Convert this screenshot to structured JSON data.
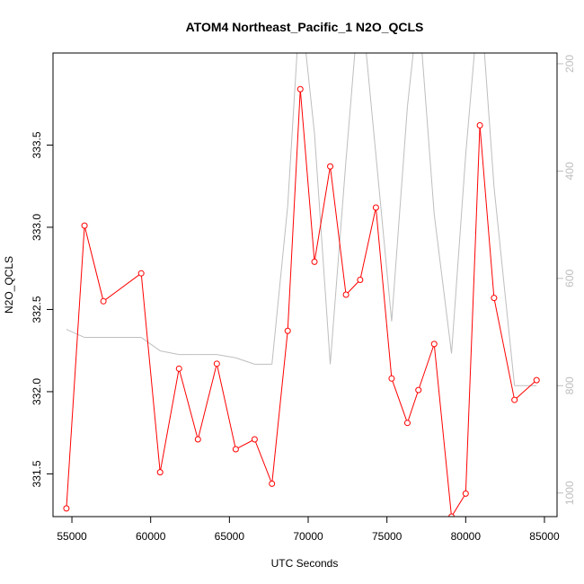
{
  "chart_data": {
    "type": "line",
    "title": "ATOM4 Northeast_Pacific_1 N2O_QCLS",
    "xlabel": "UTC Seconds",
    "ylabel": "N2O_QCLS",
    "xlim": [
      53800,
      85800
    ],
    "ylim": [
      331.24,
      334.06
    ],
    "x_ticks": [
      55000,
      60000,
      65000,
      70000,
      75000,
      80000,
      85000
    ],
    "y_ticks": [
      331.5,
      332.0,
      332.5,
      333.0,
      333.5
    ],
    "y_tick_labels": [
      "331.5",
      "332.0",
      "332.5",
      "333.0",
      "333.5"
    ],
    "y2_lim": [
      1044,
      180
    ],
    "y2_ticks": [
      200,
      400,
      600,
      800,
      1000
    ],
    "series": [
      {
        "color": "#ff0000",
        "axis": "left",
        "markers": "open-circle",
        "x": [
          54650,
          55800,
          57000,
          59400,
          60600,
          61800,
          63000,
          64200,
          65400,
          66600,
          67700,
          68700,
          69500,
          70400,
          71400,
          72400,
          73300,
          74300,
          75300,
          76300,
          77000,
          78000,
          79100,
          80000,
          80900,
          81800,
          83100,
          84500
        ],
        "y": [
          331.29,
          333.01,
          332.55,
          332.72,
          331.51,
          332.14,
          331.71,
          332.17,
          331.65,
          331.71,
          331.44,
          332.37,
          333.84,
          332.79,
          333.37,
          332.59,
          332.68,
          333.12,
          332.08,
          331.81,
          332.01,
          332.29,
          331.24,
          331.38,
          333.62,
          332.57,
          331.95,
          332.07
        ]
      },
      {
        "color": "#bebebe",
        "axis": "right",
        "markers": "none",
        "x": [
          54650,
          55800,
          57000,
          59400,
          60600,
          61800,
          63000,
          64200,
          65400,
          66600,
          67700,
          68700,
          69500,
          70400,
          71400,
          72400,
          73300,
          74300,
          75300,
          76300,
          77000,
          78000,
          79100,
          80000,
          80900,
          81800,
          83100,
          84500
        ],
        "y": [
          695,
          710,
          710,
          710,
          735,
          742,
          742,
          742,
          748,
          760,
          760,
          465,
          80,
          330,
          760,
          380,
          60,
          370,
          680,
          280,
          90,
          480,
          740,
          370,
          60,
          430,
          800,
          800
        ]
      }
    ]
  }
}
